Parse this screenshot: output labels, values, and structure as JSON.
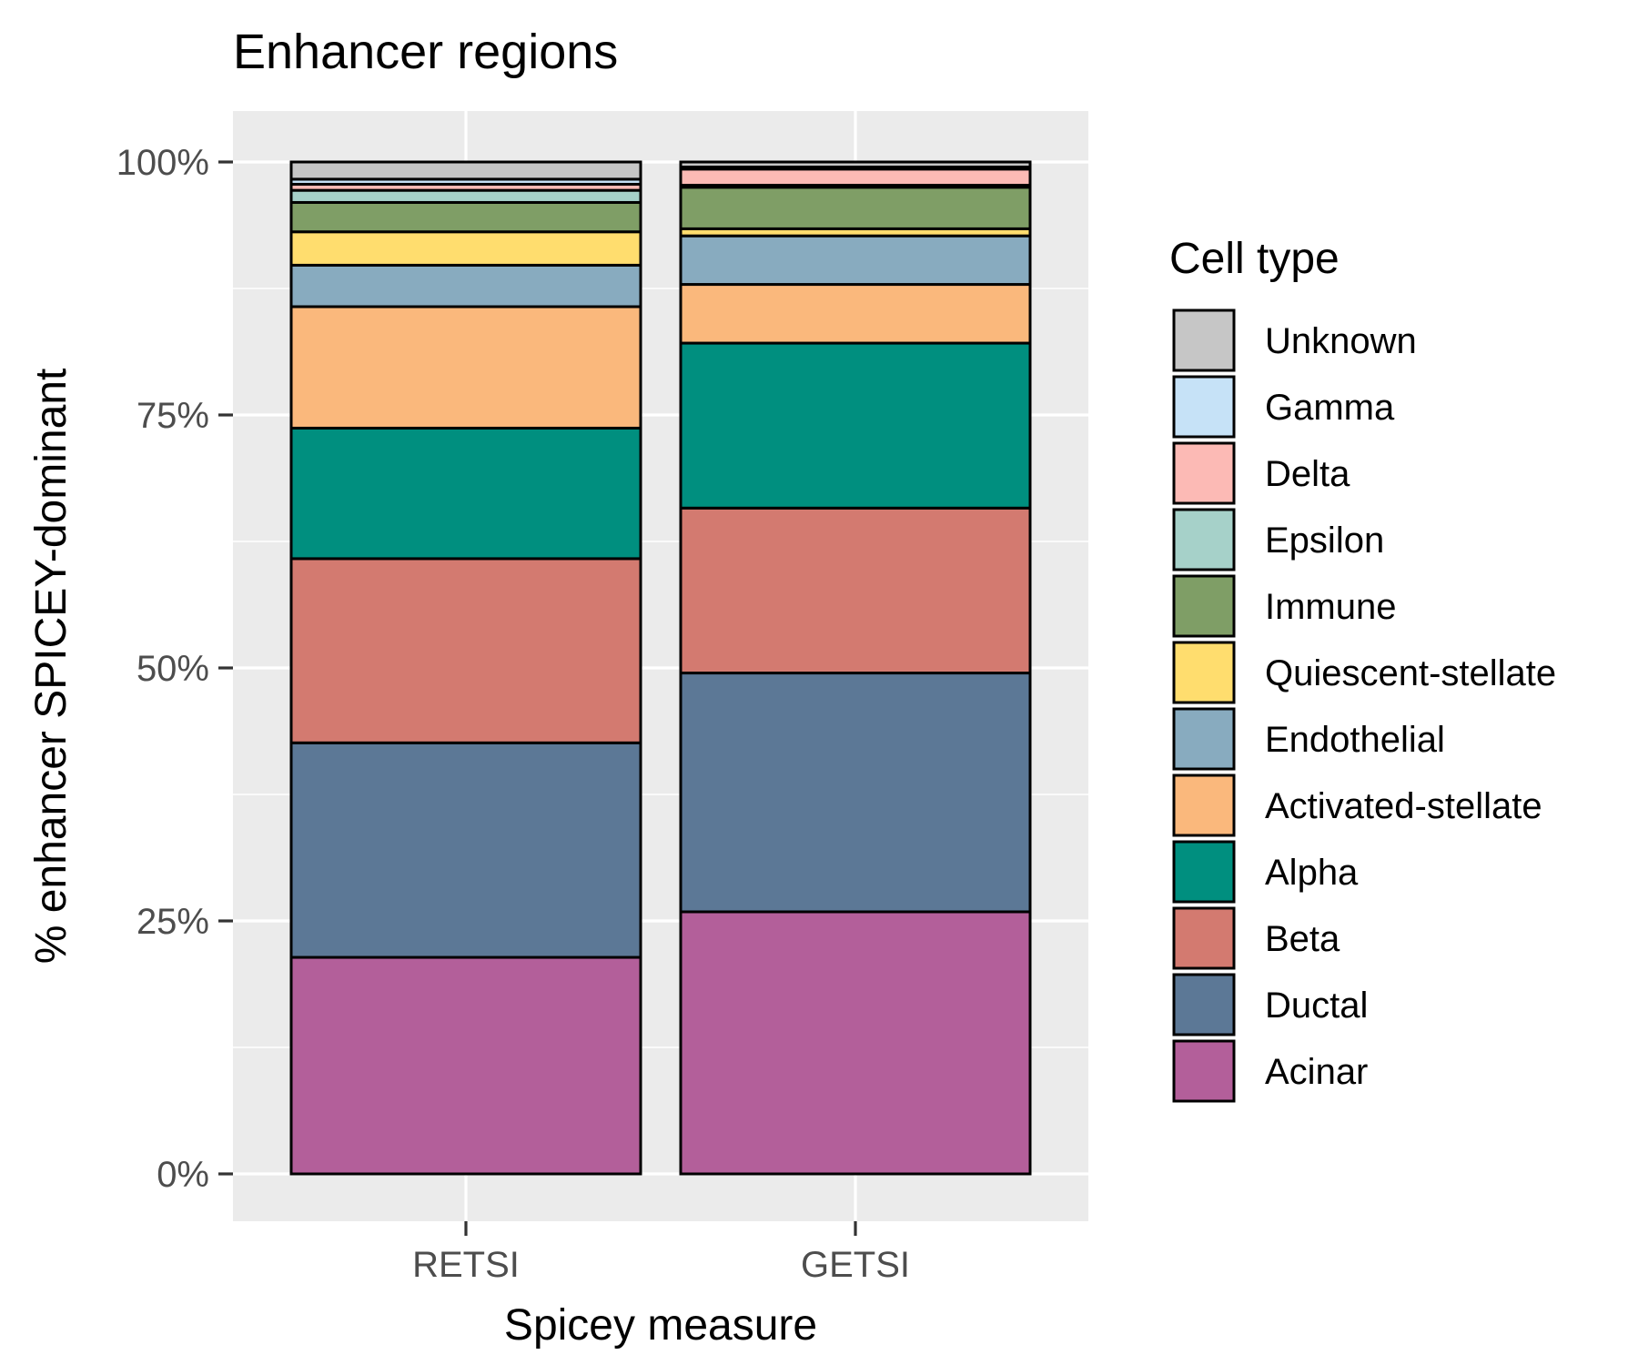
{
  "chart_data": {
    "type": "bar",
    "stacked": true,
    "title": "Enhancer regions",
    "xlabel": "Spicey measure",
    "ylabel": "% enhancer SPICEY-dominant",
    "categories": [
      "RETSI",
      "GETSI"
    ],
    "ylim": [
      0,
      100
    ],
    "yticks": [
      0,
      25,
      50,
      75,
      100
    ],
    "ytick_labels": [
      "0%",
      "25%",
      "50%",
      "75%",
      "100%"
    ],
    "grid": true,
    "legend": {
      "title": "Cell type",
      "position": "right"
    },
    "series": [
      {
        "name": "Acinar",
        "color": "#B35F9A",
        "values": [
          21.4,
          25.9
        ]
      },
      {
        "name": "Ductal",
        "color": "#5C7896",
        "values": [
          21.2,
          23.6
        ]
      },
      {
        "name": "Beta",
        "color": "#D37A70",
        "values": [
          18.2,
          16.3
        ]
      },
      {
        "name": "Alpha",
        "color": "#008F7F",
        "values": [
          12.9,
          16.3
        ]
      },
      {
        "name": "Activated-stellate",
        "color": "#FAB87C",
        "values": [
          12.0,
          5.8
        ]
      },
      {
        "name": "Endothelial",
        "color": "#88ABBF",
        "values": [
          4.1,
          4.8
        ]
      },
      {
        "name": "Quiescent-stellate",
        "color": "#FFDD6E",
        "values": [
          3.3,
          0.7
        ]
      },
      {
        "name": "Immune",
        "color": "#7F9E66",
        "values": [
          2.9,
          4.1
        ]
      },
      {
        "name": "Epsilon",
        "color": "#A6D1C9",
        "values": [
          1.2,
          0.2
        ]
      },
      {
        "name": "Delta",
        "color": "#FCBAB5",
        "values": [
          0.6,
          1.6
        ]
      },
      {
        "name": "Gamma",
        "color": "#C6E2F7",
        "values": [
          0.5,
          0.2
        ]
      },
      {
        "name": "Unknown",
        "color": "#C6C6C6",
        "values": [
          1.7,
          0.5
        ]
      }
    ]
  }
}
